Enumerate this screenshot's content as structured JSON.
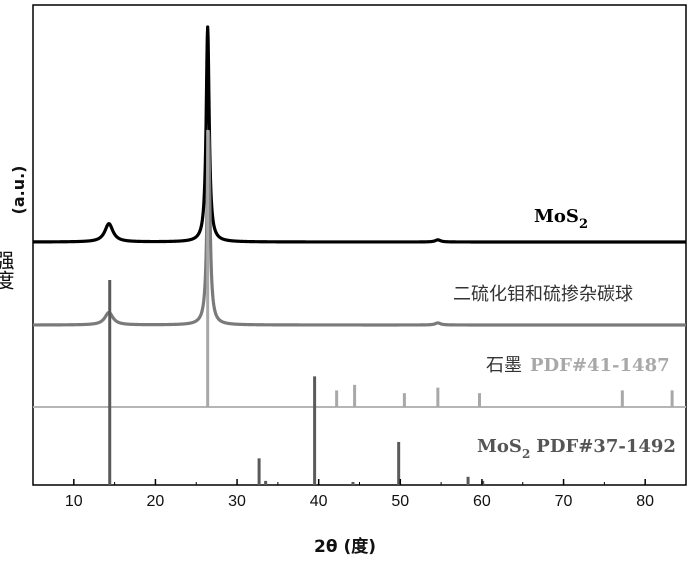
{
  "chart_data": {
    "type": "line",
    "xlabel": "2θ (度)",
    "ylabel_cn": "强度",
    "ylabel_unit": "(a.u.)",
    "xlim": [
      5,
      85
    ],
    "xticks": [
      10,
      20,
      30,
      40,
      50,
      60,
      70,
      80
    ],
    "series": [
      {
        "name": "MoS2",
        "color": "#000000",
        "peaks": [
          {
            "x": 14.3,
            "height": 0.085,
            "width": 0.6
          },
          {
            "x": 26.4,
            "height": 1.0,
            "width": 0.22
          },
          {
            "x": 54.6,
            "height": 0.01,
            "width": 0.4
          }
        ]
      },
      {
        "name": "二硫化钼和硫掺杂碳球",
        "color": "#7a7a7a",
        "peaks": [
          {
            "x": 14.3,
            "height": 0.06,
            "width": 0.6
          },
          {
            "x": 26.5,
            "height": 0.93,
            "width": 0.22
          },
          {
            "x": 54.6,
            "height": 0.01,
            "width": 0.4
          }
        ]
      }
    ],
    "reference_patterns": [
      {
        "name": "石墨",
        "pdf": "PDF#41-1487",
        "color": "#a8a8a8",
        "sticks": [
          {
            "x": 26.4,
            "intensity": 100
          },
          {
            "x": 42.2,
            "intensity": 6
          },
          {
            "x": 44.4,
            "intensity": 8
          },
          {
            "x": 50.5,
            "intensity": 5
          },
          {
            "x": 54.6,
            "intensity": 7
          },
          {
            "x": 59.7,
            "intensity": 5
          },
          {
            "x": 77.2,
            "intensity": 6
          },
          {
            "x": 83.3,
            "intensity": 6
          }
        ]
      },
      {
        "name": "MoS2",
        "pdf": "PDF#37-1492",
        "color": "#5a5a5a",
        "sticks": [
          {
            "x": 14.4,
            "intensity": 100
          },
          {
            "x": 32.7,
            "intensity": 13
          },
          {
            "x": 33.5,
            "intensity": 2
          },
          {
            "x": 39.5,
            "intensity": 53
          },
          {
            "x": 44.2,
            "intensity": 1
          },
          {
            "x": 49.8,
            "intensity": 21
          },
          {
            "x": 58.3,
            "intensity": 4
          },
          {
            "x": 60.1,
            "intensity": 2
          }
        ]
      }
    ]
  },
  "labels": {
    "mos2": "MoS",
    "mos2_sub": "2",
    "composite": "二硫化钼和硫掺杂碳球",
    "graphite_name": "石墨",
    "graphite_pdf": "PDF#41-1487",
    "ref_mos2_name": "MoS",
    "ref_mos2_sub": "2",
    "ref_mos2_pdf": "PDF#37-1492"
  }
}
